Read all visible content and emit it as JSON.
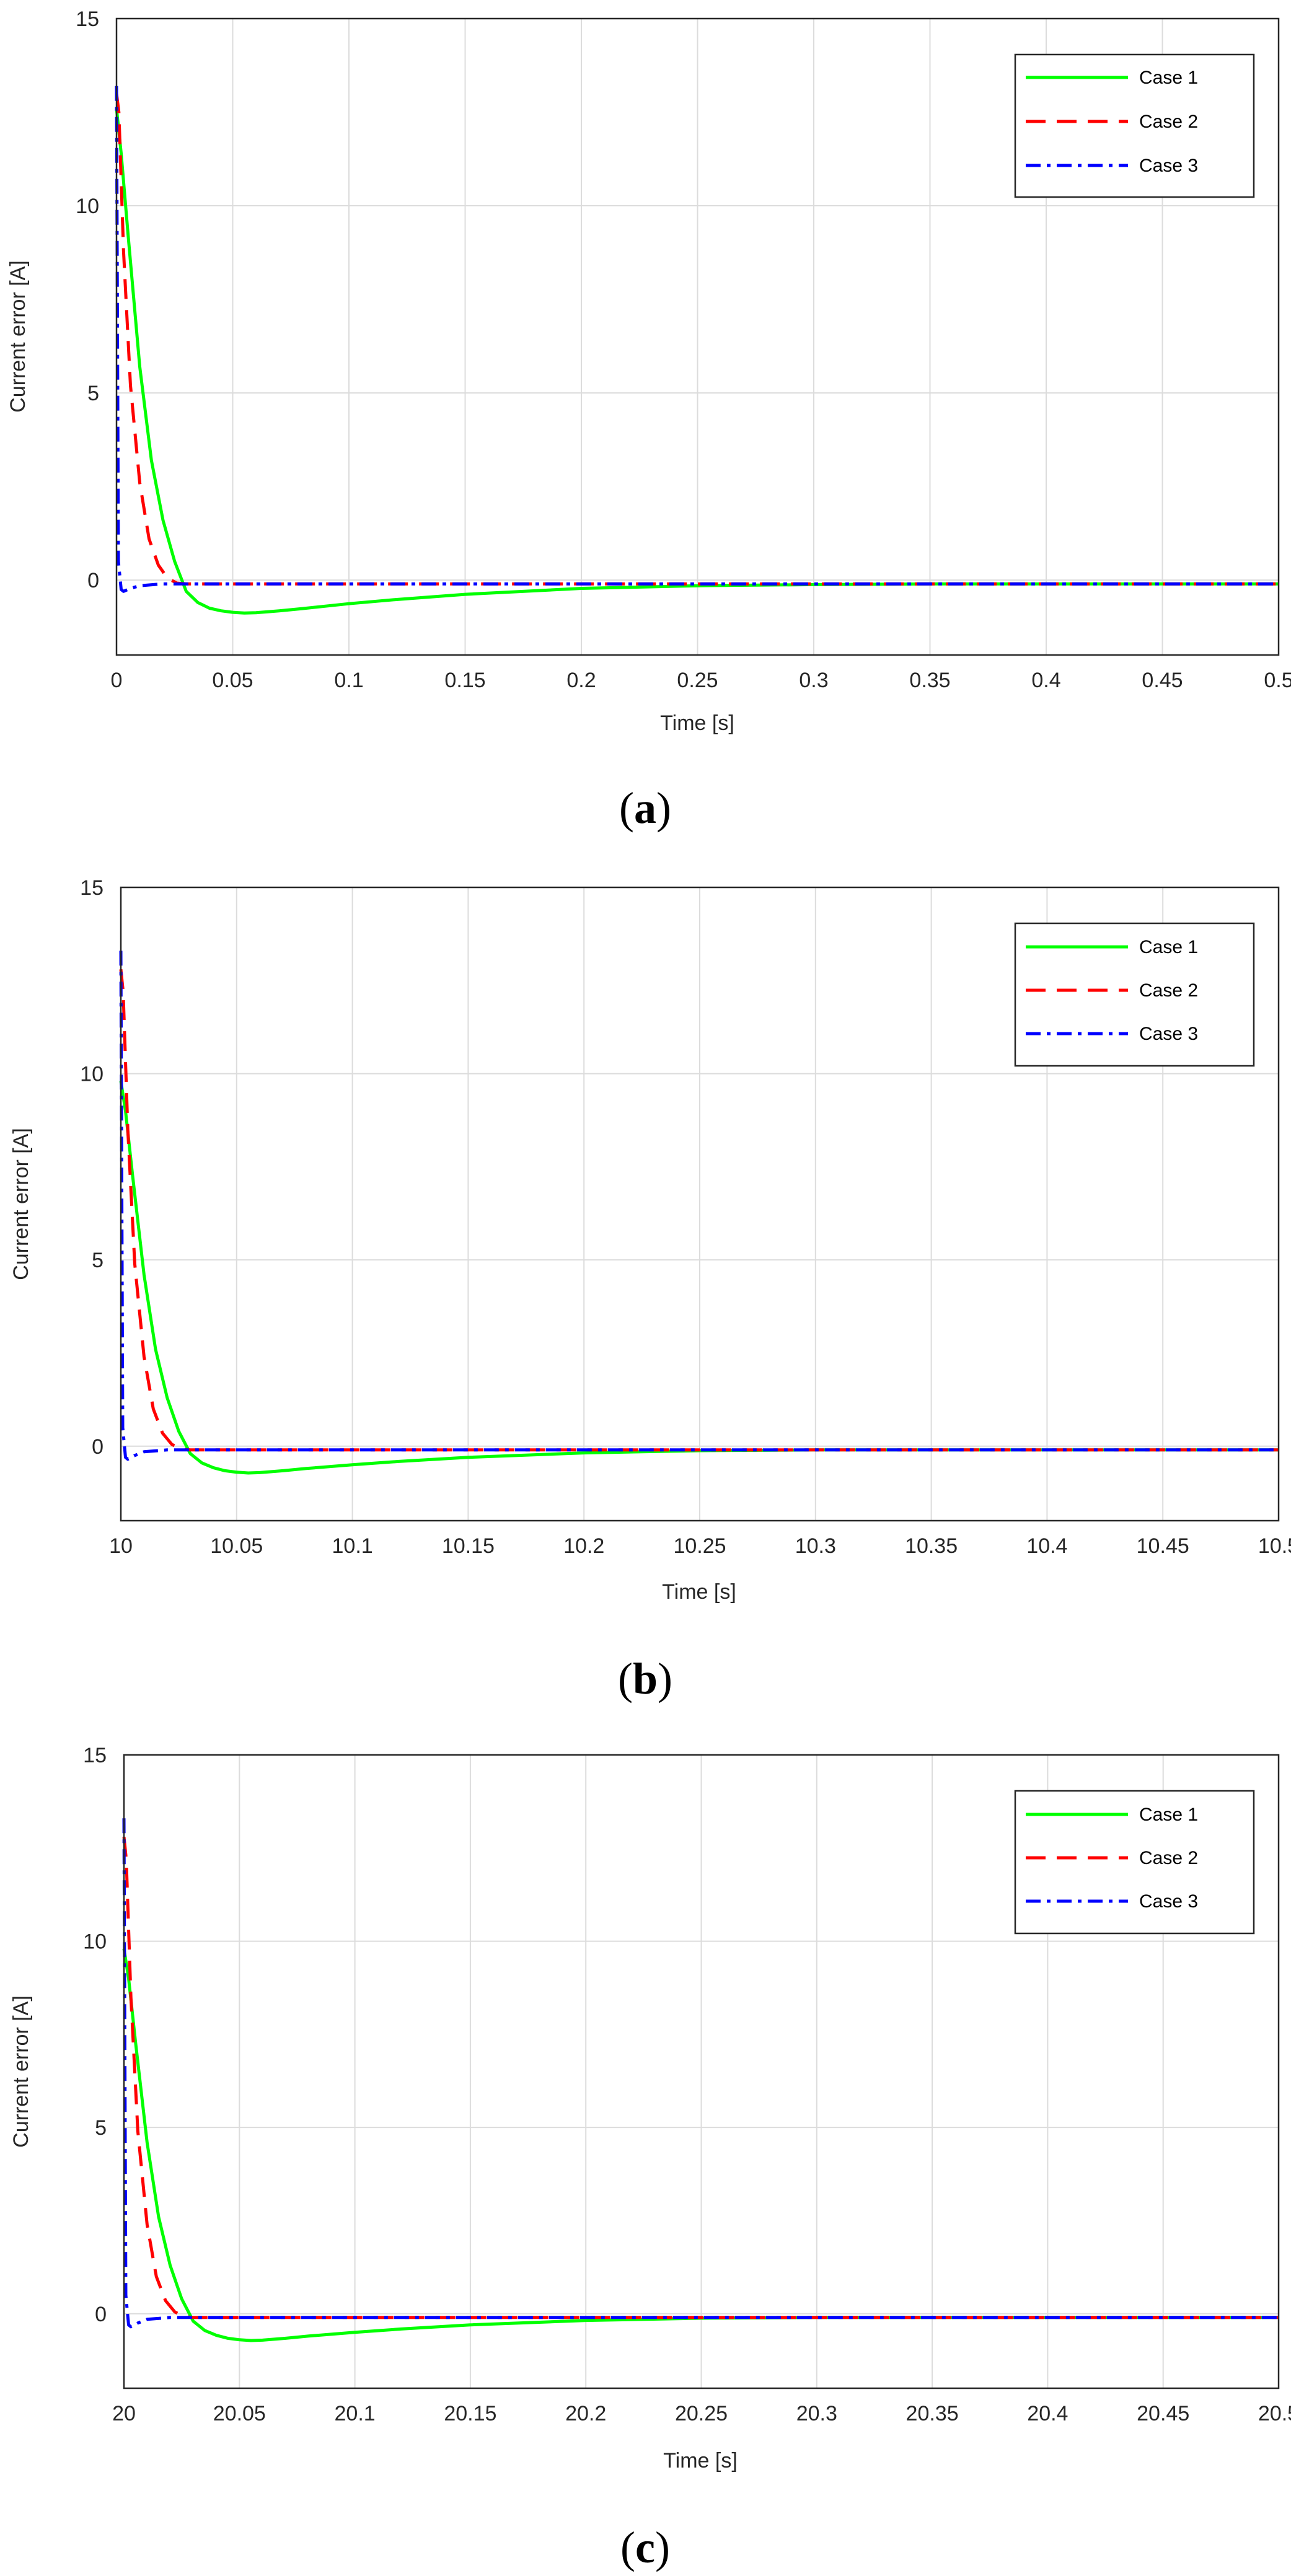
{
  "figure": {
    "colors": {
      "case1": "#00ff00",
      "case2": "#ff0000",
      "case3": "#0000ff",
      "grid": "#dcdcdc",
      "axes": "#262626"
    }
  },
  "chart_data": [
    {
      "type": "line",
      "caption": {
        "open": "(",
        "letter": "a",
        "close": ")"
      },
      "xlabel": "Time [s]",
      "ylabel": "Current error [A]",
      "xlim": [
        0,
        0.5
      ],
      "ylim": [
        -2,
        15
      ],
      "xticks": [
        "0",
        "0.05",
        "0.1",
        "0.15",
        "0.2",
        "0.25",
        "0.3",
        "0.35",
        "0.4",
        "0.45",
        "0.5"
      ],
      "yticks": [
        "0",
        "5",
        "10",
        "15"
      ],
      "grid": true,
      "legend_position": "top-right",
      "series": [
        {
          "name": "Case 1",
          "style": "solid",
          "color": "#00ff00",
          "x": [
            0,
            0.002,
            0.005,
            0.01,
            0.015,
            0.02,
            0.025,
            0.03,
            0.035,
            0.04,
            0.045,
            0.05,
            0.055,
            0.06,
            0.07,
            0.08,
            0.1,
            0.12,
            0.15,
            0.2,
            0.25,
            0.3,
            0.35,
            0.4,
            0.5
          ],
          "y": [
            12.6,
            11.4,
            9.2,
            5.7,
            3.2,
            1.6,
            0.5,
            -0.3,
            -0.6,
            -0.75,
            -0.82,
            -0.86,
            -0.88,
            -0.87,
            -0.82,
            -0.76,
            -0.63,
            -0.52,
            -0.38,
            -0.22,
            -0.15,
            -0.12,
            -0.1,
            -0.1,
            -0.1
          ]
        },
        {
          "name": "Case 2",
          "style": "dashed",
          "color": "#ff0000",
          "x": [
            0,
            0.001,
            0.003,
            0.006,
            0.01,
            0.014,
            0.018,
            0.022,
            0.026,
            0.03,
            0.04,
            0.5
          ],
          "y": [
            13.0,
            12.5,
            8.8,
            5.2,
            2.6,
            1.1,
            0.4,
            0.05,
            -0.08,
            -0.1,
            -0.1,
            -0.1
          ]
        },
        {
          "name": "Case 3",
          "style": "dashdot",
          "color": "#0000ff",
          "x": [
            0,
            0.0008,
            0.002,
            0.003,
            0.006,
            0.01,
            0.02,
            0.5
          ],
          "y": [
            13.2,
            0.5,
            -0.25,
            -0.3,
            -0.22,
            -0.15,
            -0.1,
            -0.1
          ]
        }
      ]
    },
    {
      "type": "line",
      "caption": {
        "open": "(",
        "letter": "b",
        "close": ")"
      },
      "xlabel": "Time [s]",
      "ylabel": "Current error [A]",
      "xlim": [
        10,
        10.5
      ],
      "ylim": [
        -2,
        15
      ],
      "xticks": [
        "10",
        "10.05",
        "10.1",
        "10.15",
        "10.2",
        "10.25",
        "10.3",
        "10.35",
        "10.4",
        "10.45",
        "10.5"
      ],
      "yticks": [
        "0",
        "5",
        "10",
        "15"
      ],
      "grid": true,
      "legend_position": "top-right",
      "series": [
        {
          "name": "Case 1",
          "style": "solid",
          "color": "#00ff00",
          "x": [
            10,
            10.002,
            10.005,
            10.01,
            10.015,
            10.02,
            10.025,
            10.03,
            10.035,
            10.04,
            10.045,
            10.05,
            10.055,
            10.06,
            10.07,
            10.08,
            10.1,
            10.12,
            10.15,
            10.2,
            10.25,
            10.3,
            10.35,
            10.4,
            10.5
          ],
          "y": [
            9.8,
            9.0,
            7.3,
            4.6,
            2.6,
            1.3,
            0.4,
            -0.2,
            -0.45,
            -0.58,
            -0.66,
            -0.7,
            -0.72,
            -0.71,
            -0.66,
            -0.6,
            -0.5,
            -0.41,
            -0.3,
            -0.18,
            -0.12,
            -0.1,
            -0.1,
            -0.1,
            -0.1
          ]
        },
        {
          "name": "Case 2",
          "style": "dashed",
          "color": "#ff0000",
          "x": [
            10,
            10.001,
            10.003,
            10.006,
            10.01,
            10.014,
            10.018,
            10.022,
            10.026,
            10.03,
            10.04,
            10.5
          ],
          "y": [
            12.8,
            12.2,
            8.5,
            4.9,
            2.4,
            1.0,
            0.35,
            0.05,
            -0.08,
            -0.1,
            -0.1,
            -0.1
          ]
        },
        {
          "name": "Case 3",
          "style": "dashdot",
          "color": "#0000ff",
          "x": [
            10,
            10.0008,
            10.002,
            10.003,
            10.006,
            10.01,
            10.02,
            10.5
          ],
          "y": [
            13.3,
            0.5,
            -0.3,
            -0.35,
            -0.25,
            -0.15,
            -0.1,
            -0.1
          ]
        }
      ]
    },
    {
      "type": "line",
      "caption": {
        "open": "(",
        "letter": "c",
        "close": ")"
      },
      "xlabel": "Time [s]",
      "ylabel": "Current error [A]",
      "xlim": [
        20,
        20.5
      ],
      "ylim": [
        -2,
        15
      ],
      "xticks": [
        "20",
        "20.05",
        "20.1",
        "20.15",
        "20.2",
        "20.25",
        "20.3",
        "20.35",
        "20.4",
        "20.45",
        "20.5"
      ],
      "yticks": [
        "0",
        "5",
        "10",
        "15"
      ],
      "grid": true,
      "legend_position": "top-right",
      "series": [
        {
          "name": "Case 1",
          "style": "solid",
          "color": "#00ff00",
          "x": [
            20,
            20.002,
            20.005,
            20.01,
            20.015,
            20.02,
            20.025,
            20.03,
            20.035,
            20.04,
            20.045,
            20.05,
            20.055,
            20.06,
            20.07,
            20.08,
            20.1,
            20.12,
            20.15,
            20.2,
            20.25,
            20.3,
            20.35,
            20.4,
            20.5
          ],
          "y": [
            9.8,
            9.0,
            7.3,
            4.6,
            2.6,
            1.3,
            0.4,
            -0.2,
            -0.45,
            -0.58,
            -0.66,
            -0.7,
            -0.72,
            -0.71,
            -0.66,
            -0.6,
            -0.5,
            -0.41,
            -0.3,
            -0.18,
            -0.12,
            -0.1,
            -0.1,
            -0.1,
            -0.1
          ]
        },
        {
          "name": "Case 2",
          "style": "dashed",
          "color": "#ff0000",
          "x": [
            20,
            20.001,
            20.003,
            20.006,
            20.01,
            20.014,
            20.018,
            20.022,
            20.026,
            20.03,
            20.04,
            20.5
          ],
          "y": [
            12.8,
            12.2,
            8.5,
            4.9,
            2.4,
            1.0,
            0.35,
            0.05,
            -0.08,
            -0.1,
            -0.1,
            -0.1
          ]
        },
        {
          "name": "Case 3",
          "style": "dashdot",
          "color": "#0000ff",
          "x": [
            20,
            20.0008,
            20.002,
            20.003,
            20.006,
            20.01,
            20.02,
            20.5
          ],
          "y": [
            13.3,
            0.5,
            -0.3,
            -0.35,
            -0.25,
            -0.15,
            -0.1,
            -0.1
          ]
        }
      ]
    }
  ]
}
